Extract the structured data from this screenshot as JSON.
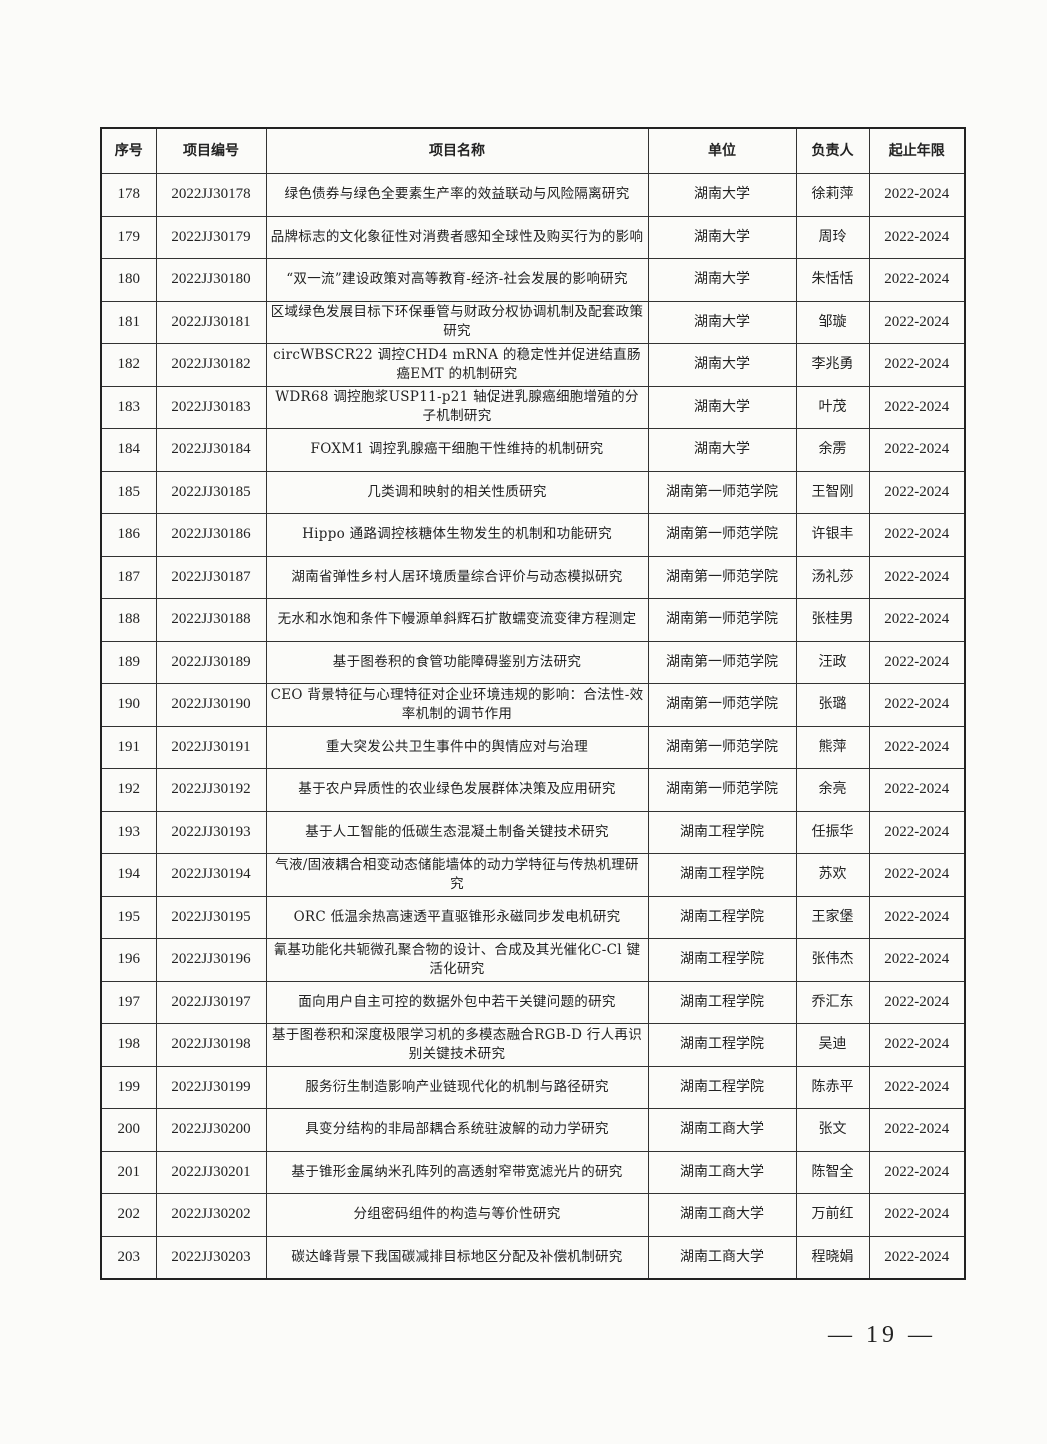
{
  "table": {
    "headers": [
      "序号",
      "项目编号",
      "项目名称",
      "单位",
      "负责人",
      "起止年限"
    ],
    "rows": [
      [
        "178",
        "2022JJ30178",
        "绿色债券与绿色全要素生产率的效益联动与风险隔离研究",
        "湖南大学",
        "徐莉萍",
        "2022-2024"
      ],
      [
        "179",
        "2022JJ30179",
        "品牌标志的文化象征性对消费者感知全球性及购买行为的影响",
        "湖南大学",
        "周玲",
        "2022-2024"
      ],
      [
        "180",
        "2022JJ30180",
        "“双一流”建设政策对高等教育-经济-社会发展的影响研究",
        "湖南大学",
        "朱恬恬",
        "2022-2024"
      ],
      [
        "181",
        "2022JJ30181",
        "区域绿色发展目标下环保垂管与财政分权协调机制及配套政策研究",
        "湖南大学",
        "邹璇",
        "2022-2024"
      ],
      [
        "182",
        "2022JJ30182",
        "circWBSCR22 调控CHD4 mRNA 的稳定性并促进结直肠癌EMT 的机制研究",
        "湖南大学",
        "李兆勇",
        "2022-2024"
      ],
      [
        "183",
        "2022JJ30183",
        "WDR68 调控胞浆USP11-p21 轴促进乳腺癌细胞增殖的分子机制研究",
        "湖南大学",
        "叶茂",
        "2022-2024"
      ],
      [
        "184",
        "2022JJ30184",
        "FOXM1 调控乳腺癌干细胞干性维持的机制研究",
        "湖南大学",
        "余雳",
        "2022-2024"
      ],
      [
        "185",
        "2022JJ30185",
        "几类调和映射的相关性质研究",
        "湖南第一师范学院",
        "王智刚",
        "2022-2024"
      ],
      [
        "186",
        "2022JJ30186",
        "Hippo 通路调控核糖体生物发生的机制和功能研究",
        "湖南第一师范学院",
        "许银丰",
        "2022-2024"
      ],
      [
        "187",
        "2022JJ30187",
        "湖南省弹性乡村人居环境质量综合评价与动态模拟研究",
        "湖南第一师范学院",
        "汤礼莎",
        "2022-2024"
      ],
      [
        "188",
        "2022JJ30188",
        "无水和水饱和条件下幔源单斜辉石扩散蠕变流变律方程测定",
        "湖南第一师范学院",
        "张桂男",
        "2022-2024"
      ],
      [
        "189",
        "2022JJ30189",
        "基于图卷积的食管功能障碍鉴别方法研究",
        "湖南第一师范学院",
        "汪政",
        "2022-2024"
      ],
      [
        "190",
        "2022JJ30190",
        "CEO 背景特征与心理特征对企业环境违规的影响：合法性-效率机制的调节作用",
        "湖南第一师范学院",
        "张璐",
        "2022-2024"
      ],
      [
        "191",
        "2022JJ30191",
        "重大突发公共卫生事件中的舆情应对与治理",
        "湖南第一师范学院",
        "熊萍",
        "2022-2024"
      ],
      [
        "192",
        "2022JJ30192",
        "基于农户异质性的农业绿色发展群体决策及应用研究",
        "湖南第一师范学院",
        "余亮",
        "2022-2024"
      ],
      [
        "193",
        "2022JJ30193",
        "基于人工智能的低碳生态混凝土制备关键技术研究",
        "湖南工程学院",
        "任振华",
        "2022-2024"
      ],
      [
        "194",
        "2022JJ30194",
        "气液/固液耦合相变动态储能墙体的动力学特征与传热机理研究",
        "湖南工程学院",
        "苏欢",
        "2022-2024"
      ],
      [
        "195",
        "2022JJ30195",
        "ORC 低温余热高速透平直驱锥形永磁同步发电机研究",
        "湖南工程学院",
        "王家堡",
        "2022-2024"
      ],
      [
        "196",
        "2022JJ30196",
        "氰基功能化共轭微孔聚合物的设计、合成及其光催化C-Cl 键活化研究",
        "湖南工程学院",
        "张伟杰",
        "2022-2024"
      ],
      [
        "197",
        "2022JJ30197",
        "面向用户自主可控的数据外包中若干关键问题的研究",
        "湖南工程学院",
        "乔汇东",
        "2022-2024"
      ],
      [
        "198",
        "2022JJ30198",
        "基于图卷积和深度极限学习机的多模态融合RGB-D 行人再识别关键技术研究",
        "湖南工程学院",
        "吴迪",
        "2022-2024"
      ],
      [
        "199",
        "2022JJ30199",
        "服务衍生制造影响产业链现代化的机制与路径研究",
        "湖南工程学院",
        "陈赤平",
        "2022-2024"
      ],
      [
        "200",
        "2022JJ30200",
        "具变分结构的非局部耦合系统驻波解的动力学研究",
        "湖南工商大学",
        "张文",
        "2022-2024"
      ],
      [
        "201",
        "2022JJ30201",
        "基于锥形金属纳米孔阵列的高透射窄带宽滤光片的研究",
        "湖南工商大学",
        "陈智全",
        "2022-2024"
      ],
      [
        "202",
        "2022JJ30202",
        "分组密码组件的构造与等价性研究",
        "湖南工商大学",
        "万前红",
        "2022-2024"
      ],
      [
        "203",
        "2022JJ30203",
        "碳达峰背景下我国碳减排目标地区分配及补偿机制研究",
        "湖南工商大学",
        "程晓娟",
        "2022-2024"
      ]
    ]
  },
  "footer": {
    "page_number": "— 19 —"
  }
}
